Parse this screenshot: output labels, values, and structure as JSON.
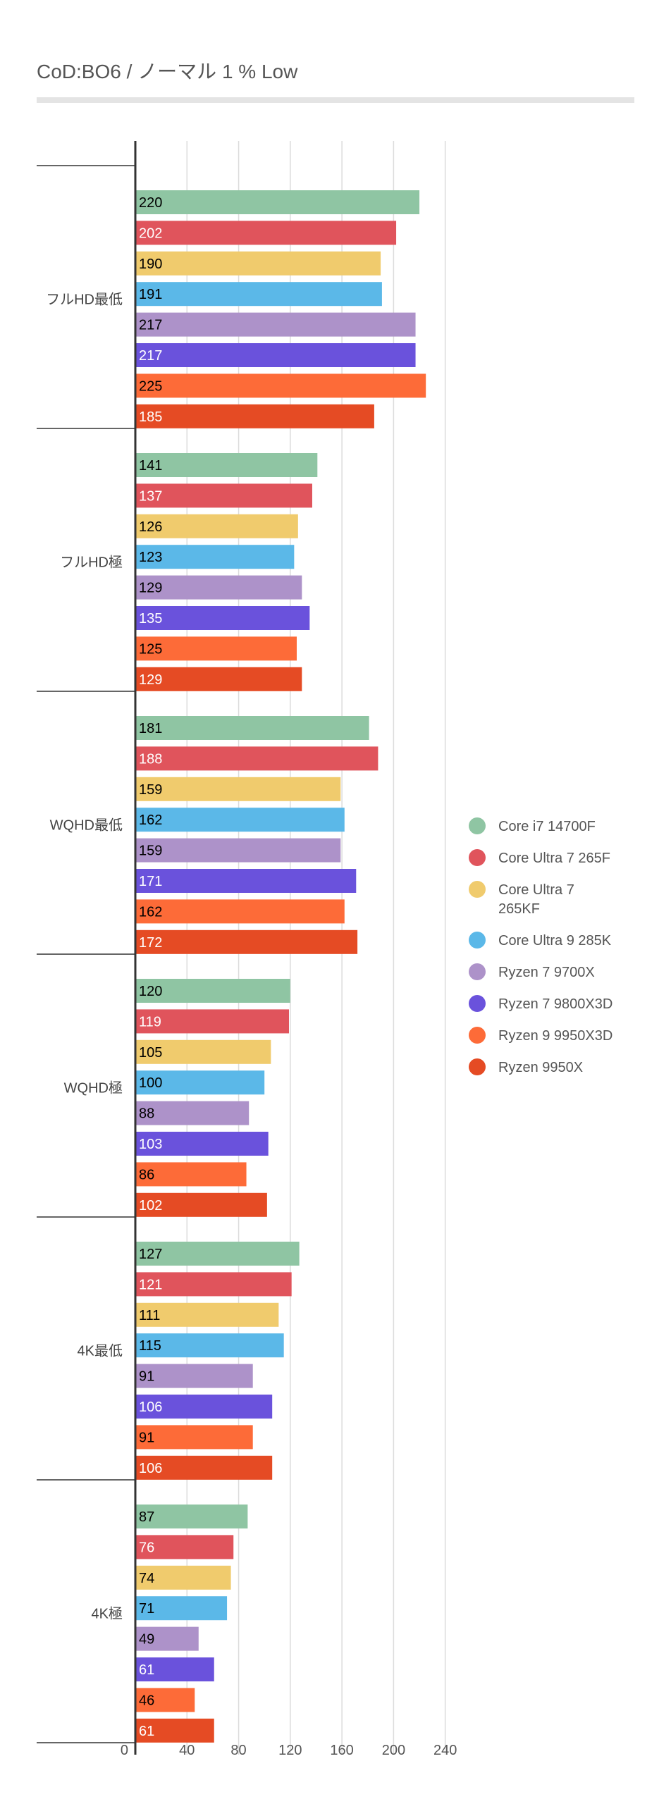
{
  "title": "CoD:BO6 /  ノーマル 1 % Low",
  "colors": {
    "series": [
      "#8fc5a3",
      "#e0545c",
      "#f0cb6d",
      "#5bb8e8",
      "#ad92c9",
      "#6a52dc",
      "#fd6b38",
      "#e54b24"
    ],
    "grid": "#dcdcdc",
    "axis": "#333333",
    "title_rule": "#e4e4e4"
  },
  "chart_data": {
    "type": "bar",
    "orientation": "horizontal",
    "title": "CoD:BO6 /  ノーマル 1 % Low",
    "categories": [
      "フルHD最低",
      "フルHD極",
      "WQHD最低",
      "WQHD極",
      "4K最低",
      "4K極"
    ],
    "series": [
      {
        "name": "Core i7 14700F",
        "values": [
          220,
          141,
          181,
          120,
          127,
          87
        ]
      },
      {
        "name": "Core Ultra 7 265F",
        "values": [
          202,
          137,
          188,
          119,
          121,
          76
        ]
      },
      {
        "name": "Core Ultra 7 265KF",
        "values": [
          190,
          126,
          159,
          105,
          111,
          74
        ]
      },
      {
        "name": "Core Ultra 9 285K",
        "values": [
          191,
          123,
          162,
          100,
          115,
          71
        ]
      },
      {
        "name": "Ryzen 7 9700X",
        "values": [
          217,
          129,
          159,
          88,
          91,
          49
        ]
      },
      {
        "name": "Ryzen 7 9800X3D",
        "values": [
          217,
          135,
          171,
          103,
          106,
          61
        ]
      },
      {
        "name": "Ryzen 9 9950X3D",
        "values": [
          225,
          125,
          162,
          86,
          91,
          46
        ]
      },
      {
        "name": "Ryzen 9950X",
        "values": [
          185,
          129,
          172,
          102,
          106,
          61
        ]
      }
    ],
    "xlim": [
      0,
      240
    ],
    "xticks": [
      0,
      40,
      80,
      120,
      160,
      200,
      240
    ],
    "value_label_colors": [
      "#000000",
      "#ffffff",
      "#000000",
      "#000000",
      "#000000",
      "#ffffff",
      "#000000",
      "#ffffff"
    ],
    "grid": true,
    "legend_position": "right"
  }
}
